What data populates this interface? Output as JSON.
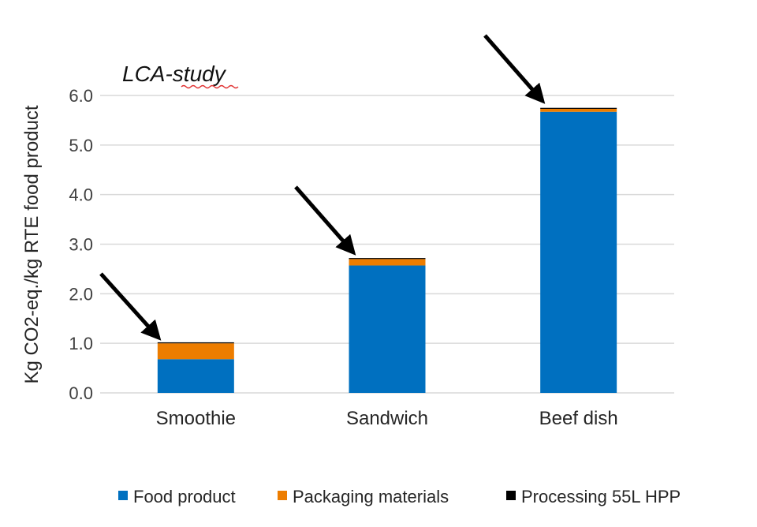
{
  "chart_data": {
    "type": "bar",
    "stacked": true,
    "title": "LCA-study",
    "xlabel": "",
    "ylabel": "Kg CO2-eq./kg RTE food product",
    "ylim": [
      0,
      6
    ],
    "yticks": [
      "0.0",
      "1.0",
      "2.0",
      "3.0",
      "4.0",
      "5.0",
      "6.0"
    ],
    "grid": true,
    "legend_position": "bottom",
    "categories": [
      "Smoothie",
      "Sandwich",
      "Beef dish"
    ],
    "series": [
      {
        "name": "Food product",
        "color": "#0070C0",
        "values": [
          0.68,
          2.57,
          5.67
        ]
      },
      {
        "name": "Packaging materials",
        "color": "#ED7D00",
        "values": [
          0.32,
          0.13,
          0.06
        ]
      },
      {
        "name": "Processing 55L HPP",
        "color": "#000000",
        "values": [
          0.02,
          0.02,
          0.02
        ]
      }
    ],
    "annotations": "arrows pointing to the top of each bar"
  }
}
